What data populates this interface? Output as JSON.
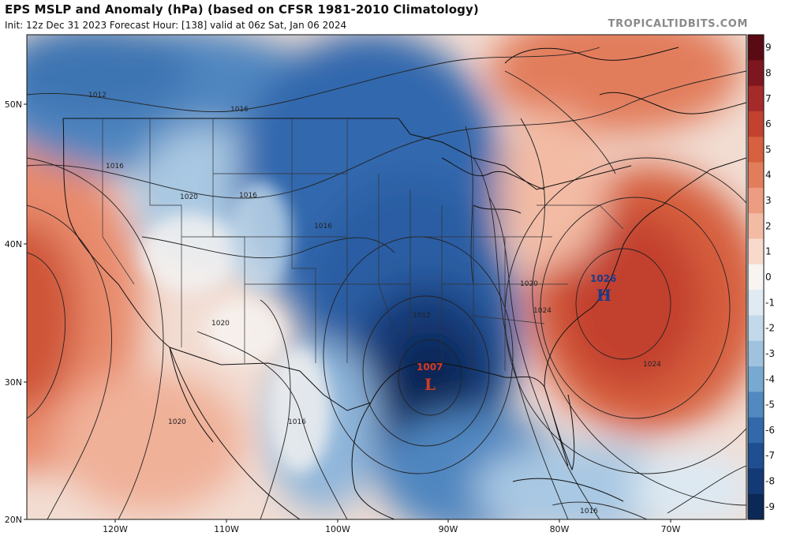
{
  "header": {
    "title": "EPS MSLP and Anomaly (hPa) (based on CFSR 1981-2010 Climatology)",
    "subtitle": "Init: 12z Dec 31 2023   Forecast Hour: [138]   valid at 06z Sat, Jan 06 2024",
    "brand": "TROPICALTIDBITS.COM"
  },
  "axes": {
    "lat_labels": [
      "50N",
      "40N",
      "30N",
      "20N"
    ],
    "lon_labels": [
      "120W",
      "110W",
      "100W",
      "90W",
      "80W",
      "70W"
    ]
  },
  "colorbar": {
    "labels": [
      "9",
      "8",
      "7",
      "6",
      "5",
      "4",
      "3",
      "2",
      "1",
      "0",
      "-1",
      "-2",
      "-3",
      "-4",
      "-5",
      "-6",
      "-7",
      "-8",
      "-9"
    ],
    "colors": [
      "#5a0a12",
      "#7e1620",
      "#a52a2a",
      "#c2412f",
      "#d6603f",
      "#e27d5c",
      "#ec9c80",
      "#f3bba4",
      "#f9d9cc",
      "#f7f4f2",
      "#dfeaf3",
      "#c2d9ea",
      "#9fc3df",
      "#78a9d1",
      "#5189c0",
      "#3269aa",
      "#1f4e91",
      "#143a76",
      "#0c2856"
    ]
  },
  "contour_labels": [
    "1012",
    "1016",
    "1016",
    "1016",
    "1016",
    "1020",
    "1020",
    "1020",
    "1012",
    "1020",
    "1024",
    "1024",
    "1016",
    "1016"
  ],
  "centers": [
    {
      "type": "L",
      "value": "1007",
      "color": "#d63a1f"
    },
    {
      "type": "H",
      "value": "1026",
      "color": "#1a3a8a"
    }
  ]
}
